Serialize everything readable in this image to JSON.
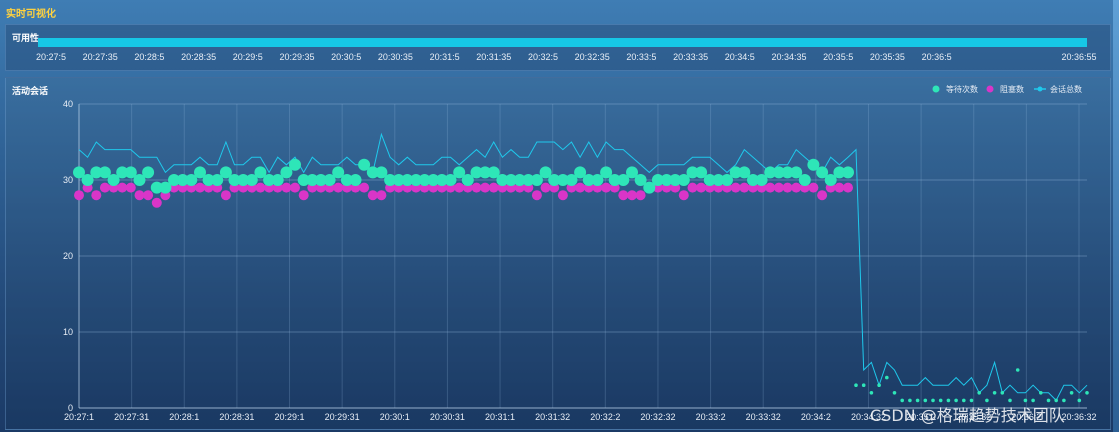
{
  "page_title": "实时可视化",
  "watermark": "CSDN @格瑞趋势技术团队",
  "availability": {
    "title": "可用性",
    "bar_color": "#16c7e6",
    "value_fraction": 1.0,
    "ticks": [
      "20:27:5",
      "20:27:35",
      "20:28:5",
      "20:28:35",
      "20:29:5",
      "20:29:35",
      "20:30:5",
      "20:30:35",
      "20:31:5",
      "20:31:35",
      "20:32:5",
      "20:32:35",
      "20:33:5",
      "20:33:35",
      "20:34:5",
      "20:34:35",
      "20:35:5",
      "20:35:35",
      "20:36:5",
      "20:36:55"
    ]
  },
  "sessions": {
    "title": "活动会话",
    "legend": [
      {
        "label": "等待次数",
        "color": "#2ee6b8",
        "icon": "circle-icon"
      },
      {
        "label": "阻塞数",
        "color": "#d935c8",
        "icon": "circle-icon"
      },
      {
        "label": "会话总数",
        "color": "#1fc9ec",
        "icon": "line-dot-icon"
      }
    ]
  },
  "chart_data": {
    "type": "line",
    "title": "活动会话",
    "ylim": [
      0,
      40
    ],
    "yticks": [
      0,
      10,
      20,
      30,
      40
    ],
    "xticks": [
      "20:27:1",
      "20:27:31",
      "20:28:1",
      "20:28:31",
      "20:29:1",
      "20:29:31",
      "20:30:1",
      "20:30:31",
      "20:31:1",
      "20:31:32",
      "20:32:2",
      "20:32:32",
      "20:33:2",
      "20:33:32",
      "20:34:2",
      "20:34:32",
      "20:35:2",
      "20:35:32",
      "20:36:2",
      "20:36:32"
    ],
    "x_range_seconds": [
      0,
      1000
    ],
    "grid": true,
    "legend_position": "top-right",
    "series": [
      {
        "name": "等待次数",
        "type": "scatter",
        "color": "#2ee6b8",
        "values": [
          31,
          30,
          31,
          31,
          30,
          31,
          31,
          30,
          31,
          29,
          29,
          30,
          30,
          30,
          31,
          30,
          30,
          31,
          30,
          30,
          30,
          31,
          30,
          30,
          31,
          32,
          30,
          30,
          30,
          30,
          31,
          30,
          30,
          32,
          31,
          31,
          30,
          30,
          30,
          30,
          30,
          30,
          30,
          30,
          31,
          30,
          31,
          31,
          31,
          30,
          30,
          30,
          30,
          30,
          31,
          30,
          30,
          30,
          31,
          30,
          30,
          31,
          30,
          30,
          31,
          30,
          29,
          30,
          30,
          30,
          30,
          31,
          31,
          30,
          30,
          30,
          31,
          31,
          30,
          30,
          31,
          31,
          31,
          31,
          30,
          32,
          31,
          30,
          31,
          31,
          3,
          3,
          2,
          3,
          4,
          2,
          1,
          1,
          1,
          1,
          1,
          1,
          1,
          1,
          1,
          1,
          2,
          1,
          2,
          2,
          1,
          5,
          1,
          1,
          2,
          1,
          1,
          1,
          2,
          1,
          2
        ]
      },
      {
        "name": "阻塞数",
        "type": "scatter",
        "color": "#d935c8",
        "values": [
          28,
          29,
          28,
          29,
          29,
          29,
          29,
          28,
          28,
          27,
          28,
          29,
          29,
          29,
          29,
          29,
          29,
          28,
          29,
          29,
          29,
          29,
          29,
          29,
          29,
          29,
          28,
          29,
          29,
          29,
          29,
          29,
          29,
          29,
          28,
          28,
          29,
          29,
          29,
          29,
          29,
          29,
          29,
          29,
          29,
          29,
          29,
          29,
          29,
          29,
          29,
          29,
          29,
          28,
          29,
          29,
          28,
          29,
          29,
          29,
          29,
          29,
          29,
          28,
          28,
          28,
          29,
          29,
          29,
          29,
          28,
          29,
          29,
          29,
          29,
          29,
          29,
          29,
          29,
          29,
          29,
          29,
          29,
          29,
          29,
          29,
          28,
          29,
          29,
          29
        ]
      },
      {
        "name": "会话总数",
        "type": "line",
        "color": "#1fc9ec",
        "values": [
          34,
          33,
          35,
          34,
          34,
          34,
          34,
          33,
          33,
          33,
          31,
          32,
          32,
          32,
          33,
          32,
          32,
          35,
          32,
          32,
          33,
          33,
          31,
          33,
          32,
          33,
          31,
          33,
          32,
          32,
          32,
          33,
          32,
          32,
          31,
          36,
          33,
          32,
          33,
          32,
          32,
          32,
          33,
          33,
          32,
          33,
          34,
          33,
          35,
          33,
          34,
          33,
          33,
          35,
          35,
          35,
          34,
          35,
          33,
          35,
          33,
          35,
          34,
          34,
          33,
          32,
          31,
          32,
          32,
          32,
          32,
          33,
          33,
          33,
          32,
          31,
          32,
          34,
          33,
          32,
          31,
          32,
          32,
          34,
          33,
          32,
          31,
          33,
          32,
          33,
          34,
          5,
          6,
          3,
          6,
          5,
          3,
          3,
          3,
          4,
          3,
          3,
          3,
          4,
          3,
          4,
          2,
          3,
          6,
          2,
          3,
          2,
          2,
          3,
          2,
          2,
          1,
          3,
          3,
          2,
          3
        ]
      }
    ]
  }
}
